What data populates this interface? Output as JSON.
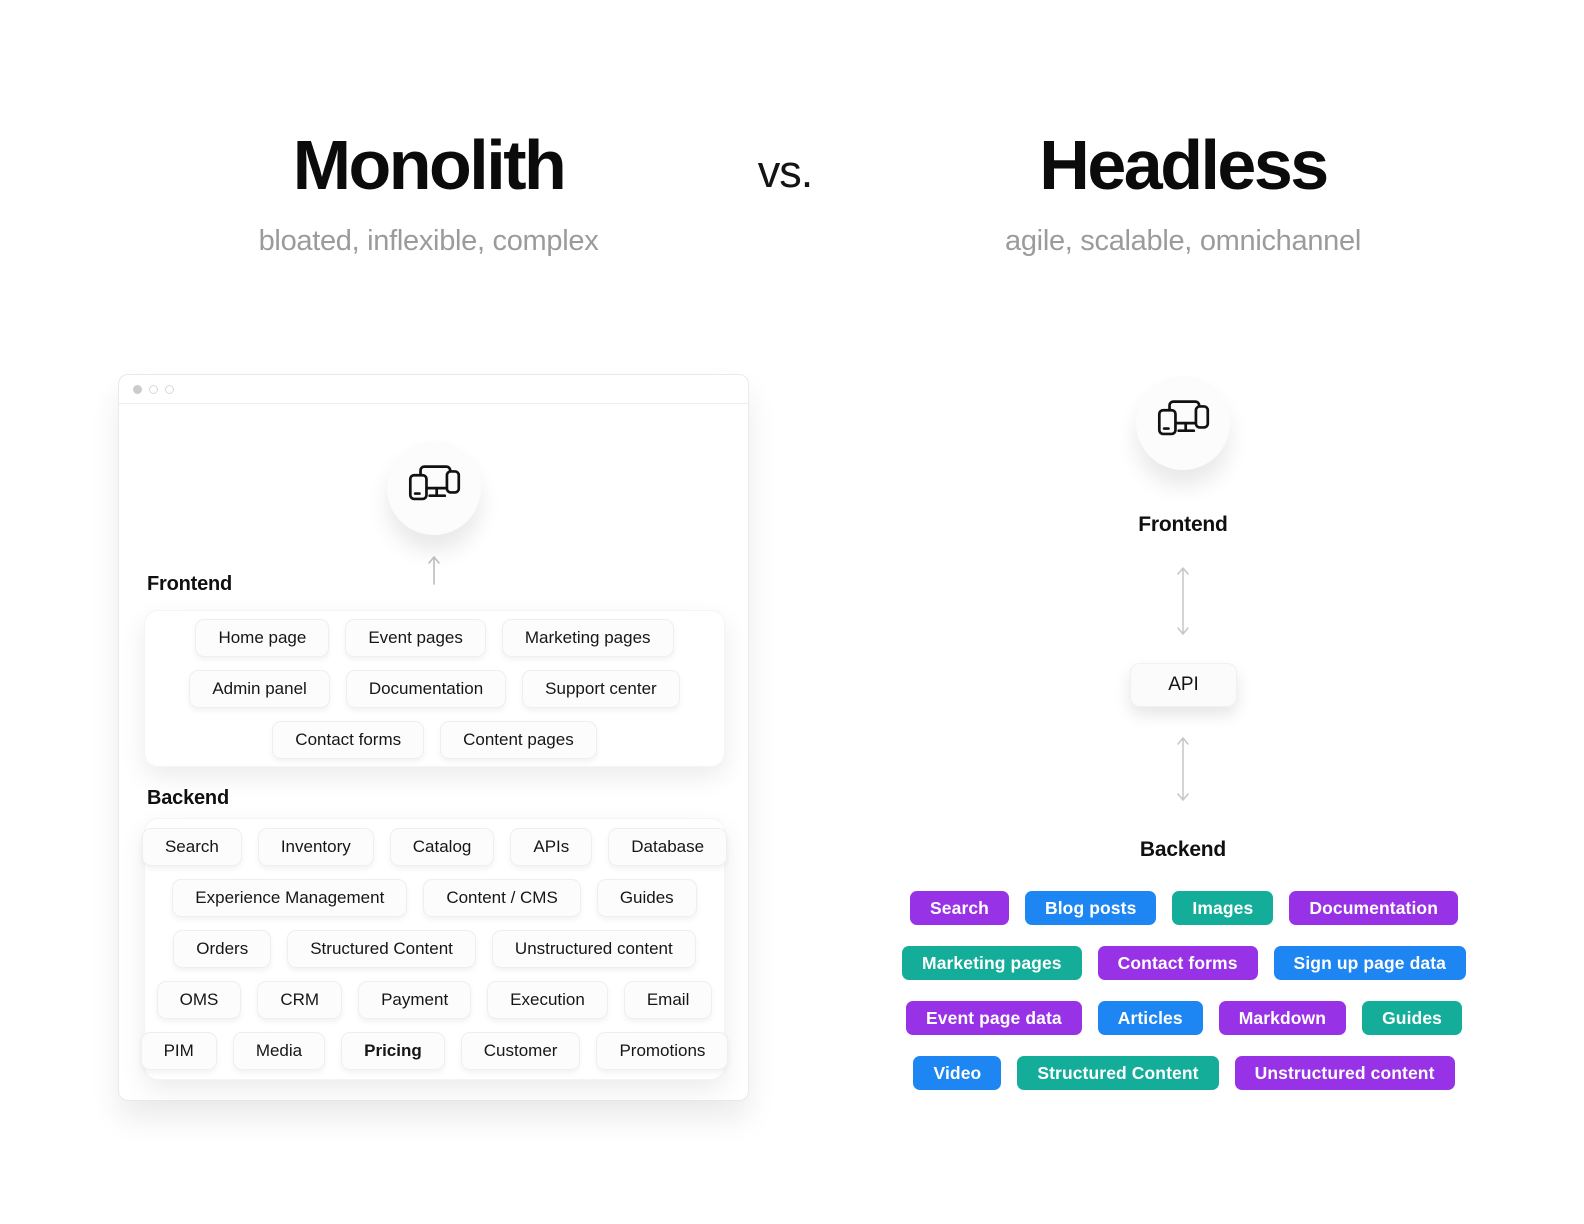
{
  "colors": {
    "purple": "#9832e6",
    "blue": "#1e86f2",
    "teal": "#13ad99"
  },
  "header": {
    "left_title": "Monolith",
    "left_subtitle": "bloated, inflexible, complex",
    "vs": "vs.",
    "right_title": "Headless",
    "right_subtitle": "agile, scalable, omnichannel"
  },
  "icons": {
    "devices": "devices-icon",
    "up_arrow": "arrow-up-icon",
    "double_arrow": "double-vertical-arrow-icon"
  },
  "monolith": {
    "frontend_label": "Frontend",
    "backend_label": "Backend",
    "frontend": {
      "rows": [
        [
          "Home page",
          "Event pages",
          "Marketing pages"
        ],
        [
          "Admin panel",
          "Documentation",
          "Support center"
        ],
        [
          "Contact forms",
          "Content pages"
        ]
      ]
    },
    "backend": {
      "rows": [
        [
          "Search",
          "Inventory",
          "Catalog",
          "APIs",
          "Database"
        ],
        [
          "Experience Management",
          "Content / CMS",
          "Guides"
        ],
        [
          "Orders",
          "Structured Content",
          "Unstructured content"
        ],
        [
          "OMS",
          "CRM",
          "Payment",
          "Execution",
          "Email"
        ],
        [
          "PIM",
          "Media",
          {
            "label": "Pricing",
            "bold": true
          },
          "Customer",
          "Promotions"
        ]
      ]
    }
  },
  "headless": {
    "frontend_label": "Frontend",
    "api_label": "API",
    "backend_label": "Backend",
    "backend": {
      "rows": [
        [
          {
            "label": "Search",
            "color": "purple"
          },
          {
            "label": "Blog posts",
            "color": "blue"
          },
          {
            "label": "Images",
            "color": "teal"
          },
          {
            "label": "Documentation",
            "color": "purple"
          }
        ],
        [
          {
            "label": "Marketing pages",
            "color": "teal"
          },
          {
            "label": "Contact forms",
            "color": "purple"
          },
          {
            "label": "Sign up page data",
            "color": "blue"
          }
        ],
        [
          {
            "label": "Event page data",
            "color": "purple"
          },
          {
            "label": "Articles",
            "color": "blue"
          },
          {
            "label": "Markdown",
            "color": "purple"
          },
          {
            "label": "Guides",
            "color": "teal"
          }
        ],
        [
          {
            "label": "Video",
            "color": "blue"
          },
          {
            "label": "Structured Content",
            "color": "teal"
          },
          {
            "label": "Unstructured content",
            "color": "purple"
          }
        ]
      ]
    }
  }
}
